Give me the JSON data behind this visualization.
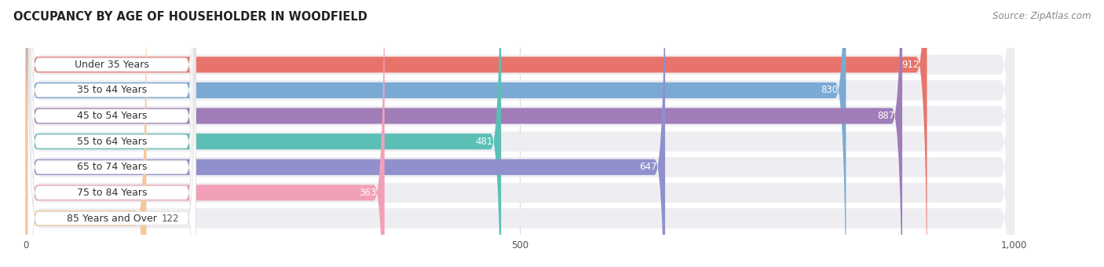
{
  "title": "OCCUPANCY BY AGE OF HOUSEHOLDER IN WOODFIELD",
  "source": "Source: ZipAtlas.com",
  "categories": [
    "Under 35 Years",
    "35 to 44 Years",
    "45 to 54 Years",
    "55 to 64 Years",
    "65 to 74 Years",
    "75 to 84 Years",
    "85 Years and Over"
  ],
  "values": [
    912,
    830,
    887,
    481,
    647,
    363,
    122
  ],
  "bar_colors": [
    "#E8736A",
    "#7aaad4",
    "#A07DB8",
    "#5BBFB5",
    "#9090CC",
    "#F2A0B8",
    "#F5C89A"
  ],
  "bar_bg_color": "#EEEEF2",
  "xlim_min": -15,
  "xlim_max": 1080,
  "data_max": 1000,
  "xticks": [
    0,
    500,
    1000
  ],
  "xticklabels": [
    "0",
    "500",
    "1,000"
  ],
  "title_fontsize": 10.5,
  "source_fontsize": 8.5,
  "label_fontsize": 9,
  "value_fontsize": 8.5,
  "background_color": "#FFFFFF",
  "grid_color": "#CCCCCC",
  "label_pill_color": "#FFFFFF",
  "label_text_color": "#333333",
  "value_text_color_inside": "#FFFFFF",
  "value_text_color_outside": "#555555",
  "value_outside_threshold": 200
}
